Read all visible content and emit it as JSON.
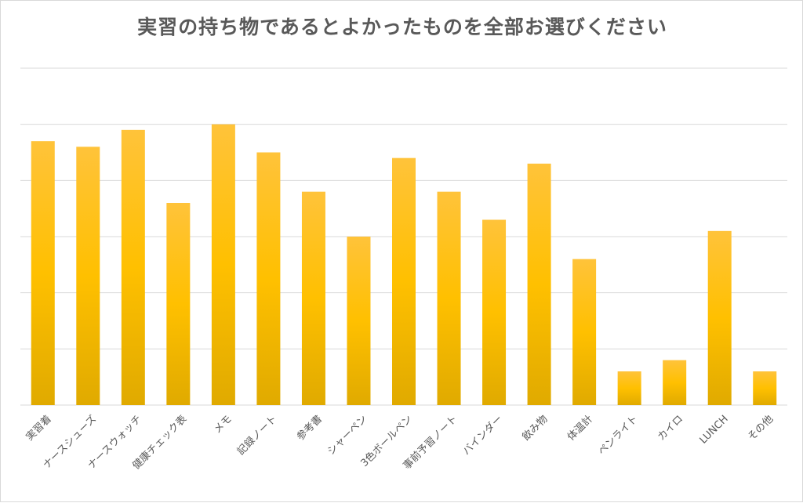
{
  "chart_data": {
    "type": "bar",
    "title": "実習の持ち物であるとよかったものを全部お選びください",
    "categories": [
      "実習着",
      "ナースシューズ",
      "ナースウォッチ",
      "健康チェック表",
      "メモ",
      "記録ノート",
      "参考書",
      "シャーペン",
      "3色ボールペン",
      "事前予習ノート",
      "バインダー",
      "飲み物",
      "体温計",
      "ペンライト",
      "カイロ",
      "LUNCH",
      "その他"
    ],
    "values": [
      47,
      46,
      49,
      36,
      50,
      45,
      38,
      30,
      44,
      38,
      33,
      43,
      26,
      6,
      8,
      31,
      6
    ],
    "ylim": [
      0,
      60
    ],
    "grid": true,
    "legend": "none",
    "xlabel": "",
    "ylabel": "",
    "colors": {
      "bar_top": "#ffc33a",
      "bar_mid": "#ffc000",
      "bar_bottom": "#e0aa00",
      "grid": "#d9d9d9",
      "text": "#595959"
    }
  }
}
